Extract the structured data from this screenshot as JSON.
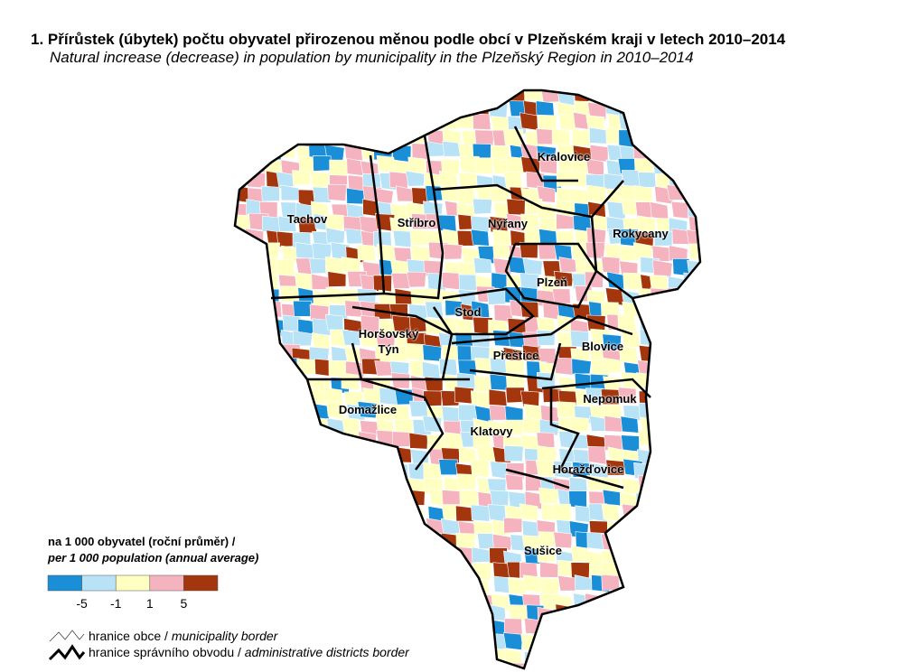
{
  "title": "1. Přírůstek (úbytek) počtu obyvatel přirozenou měnou podle obcí v Plzeňském kraji v letech 2010–2014",
  "subtitle": "Natural increase (decrease) in population by municipality in the Plzeňský Region in 2010–2014",
  "districts": [
    "Tachov",
    "Stříbro",
    "Nýřany",
    "Kralovice",
    "Rokycany",
    "Plzeň",
    "Stod",
    "Horšovský Týn",
    "Přeštice",
    "Blovice",
    "Nepomuk",
    "Domažlice",
    "Klatovy",
    "Horažďovice",
    "Sušice"
  ],
  "legend": {
    "title_cz": "na 1 000 obyvatel (roční průměr) /",
    "title_en": "per 1 000 population (annual average)",
    "colors": [
      "#1a8fd8",
      "#b8e2f6",
      "#ffffc2",
      "#f4b3bf",
      "#a4360d"
    ],
    "breaks": [
      -5,
      -1,
      1,
      5
    ],
    "borders": [
      {
        "cz": "hranice obce /",
        "en": "municipality border"
      },
      {
        "cz": "hranice správního obvodu /",
        "en": "administrative districts border"
      }
    ]
  }
}
